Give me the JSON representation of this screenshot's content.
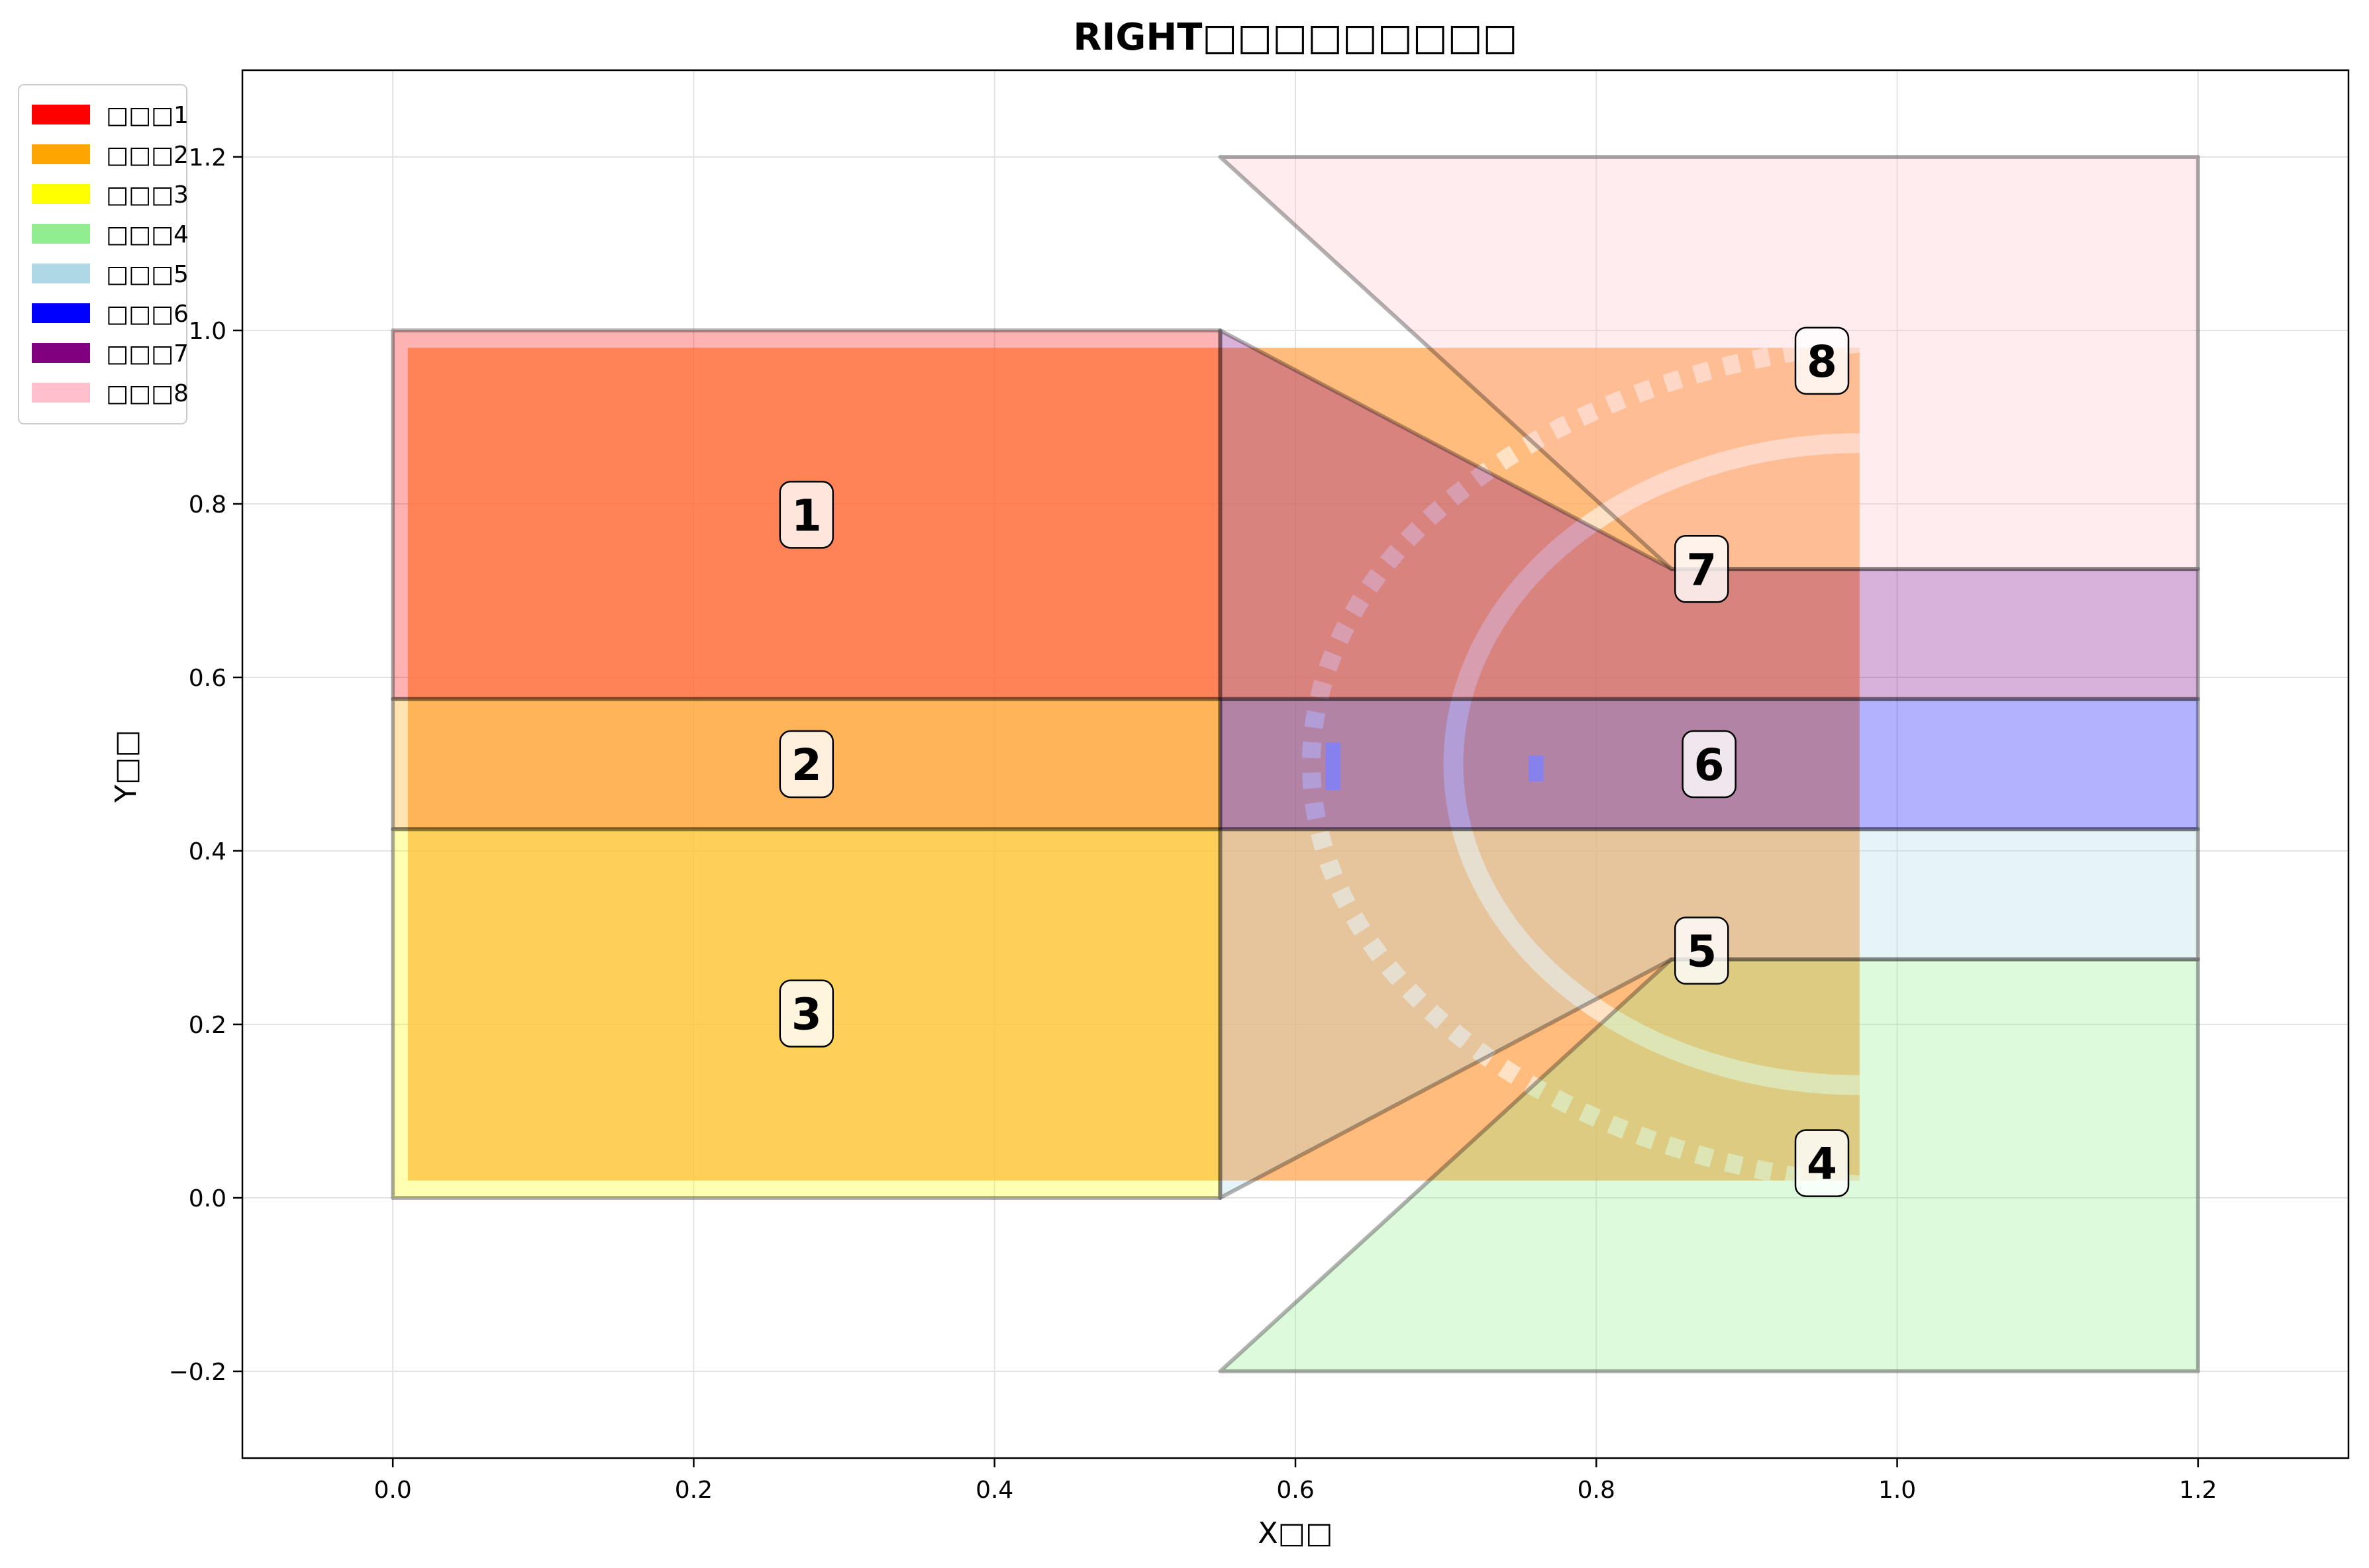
{
  "chart_data": {
    "type": "area",
    "title": "RIGHT□□□□□□□□□",
    "xlabel": "X□□",
    "ylabel": "Y□□",
    "xlim": [
      -0.1,
      1.3
    ],
    "ylim": [
      -0.3,
      1.3
    ],
    "xticks": [
      0.0,
      0.2,
      0.4,
      0.6,
      0.8,
      1.0,
      1.2
    ],
    "yticks": [
      -0.2,
      0.0,
      0.2,
      0.4,
      0.6,
      0.8,
      1.0,
      1.2
    ],
    "xtick_labels": [
      "0.0",
      "0.2",
      "0.4",
      "0.6",
      "0.8",
      "1.0",
      "1.2"
    ],
    "ytick_labels": [
      "−0.2",
      "0.0",
      "0.2",
      "0.4",
      "0.6",
      "0.8",
      "1.0",
      "1.2"
    ],
    "grid": true,
    "legend_position": "upper-left-outside",
    "regions": [
      {
        "name": "□□□1",
        "label": "1",
        "color": "#ff0000",
        "polygon": [
          [
            0,
            0.575
          ],
          [
            0.55,
            0.575
          ],
          [
            0.55,
            1.0
          ],
          [
            0,
            1.0
          ]
        ],
        "label_at": [
          0.275,
          0.7875
        ]
      },
      {
        "name": "□□□2",
        "label": "2",
        "color": "#ffa500",
        "polygon": [
          [
            0,
            0.425
          ],
          [
            0.55,
            0.425
          ],
          [
            0.55,
            0.575
          ],
          [
            0,
            0.575
          ]
        ],
        "label_at": [
          0.275,
          0.5
        ]
      },
      {
        "name": "□□□3",
        "label": "3",
        "color": "#ffff00",
        "polygon": [
          [
            0,
            0.0
          ],
          [
            0.55,
            0.0
          ],
          [
            0.55,
            0.425
          ],
          [
            0,
            0.425
          ]
        ],
        "label_at": [
          0.275,
          0.2125
        ]
      },
      {
        "name": "□□□4",
        "label": "4",
        "color": "#90ee90",
        "polygon": [
          [
            0.55,
            -0.2
          ],
          [
            1.2,
            -0.2
          ],
          [
            1.2,
            0.275
          ],
          [
            0.85,
            0.275
          ]
        ],
        "label_at": [
          0.95,
          0.04
        ]
      },
      {
        "name": "□□□5",
        "label": "5",
        "color": "#add8e6",
        "polygon": [
          [
            0.55,
            0.0
          ],
          [
            0.85,
            0.275
          ],
          [
            1.2,
            0.275
          ],
          [
            1.2,
            0.425
          ],
          [
            0.55,
            0.425
          ]
        ],
        "label_at": [
          0.87,
          0.285
        ]
      },
      {
        "name": "□□□6",
        "label": "6",
        "color": "#0000ff",
        "polygon": [
          [
            0.55,
            0.425
          ],
          [
            1.2,
            0.425
          ],
          [
            1.2,
            0.575
          ],
          [
            0.55,
            0.575
          ]
        ],
        "label_at": [
          0.875,
          0.5
        ]
      },
      {
        "name": "□□□7",
        "label": "7",
        "color": "#800080",
        "polygon": [
          [
            0.55,
            0.575
          ],
          [
            1.2,
            0.575
          ],
          [
            1.2,
            0.725
          ],
          [
            0.85,
            0.725
          ],
          [
            0.55,
            1.0
          ]
        ],
        "label_at": [
          0.87,
          0.725
        ]
      },
      {
        "name": "□□□8",
        "label": "8",
        "color": "#ffc0cb",
        "polygon": [
          [
            0.55,
            1.2
          ],
          [
            1.2,
            1.2
          ],
          [
            1.2,
            0.725
          ],
          [
            0.85,
            0.725
          ]
        ],
        "label_at": [
          0.95,
          0.965
        ]
      }
    ],
    "overlay_image": {
      "color": "#ffa552",
      "x": [
        0.01,
        0.975
      ],
      "y": [
        0.02,
        0.98
      ]
    }
  }
}
